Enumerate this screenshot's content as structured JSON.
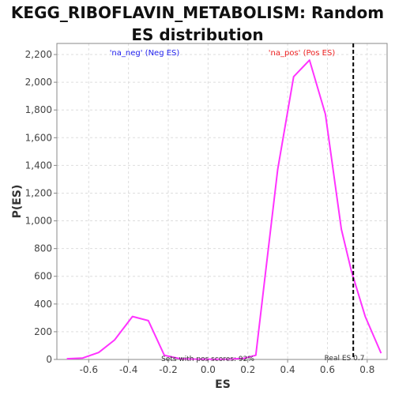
{
  "chart_data": {
    "type": "line",
    "title": "KEGG_RIBOFLAVIN_METABOLISM: Random ES distribution",
    "xlabel": "ES",
    "ylabel": "P(ES)",
    "xlim": [
      -0.76,
      0.9
    ],
    "ylim": [
      0,
      2280
    ],
    "x_ticks": [
      "-0.6",
      "-0.4",
      "-0.2",
      "0.0",
      "0.2",
      "0.4",
      "0.6",
      "0.8"
    ],
    "x_tick_values": [
      -0.6,
      -0.4,
      -0.2,
      0.0,
      0.2,
      0.4,
      0.6,
      0.8
    ],
    "y_ticks": [
      "0",
      "200",
      "400",
      "600",
      "800",
      "1,000",
      "1,200",
      "1,400",
      "1,600",
      "1,800",
      "2,000",
      "2,200"
    ],
    "y_tick_values": [
      0,
      200,
      400,
      600,
      800,
      1000,
      1200,
      1400,
      1600,
      1800,
      2000,
      2200
    ],
    "grid": true,
    "series": [
      {
        "color": "#ff33ff",
        "x": [
          -0.71,
          -0.63,
          -0.55,
          -0.47,
          -0.38,
          -0.3,
          -0.22,
          -0.14,
          -0.06,
          0.02,
          0.1,
          0.18,
          0.24,
          0.28,
          0.35,
          0.43,
          0.51,
          0.59,
          0.67,
          0.72,
          0.79,
          0.87
        ],
        "y": [
          5,
          10,
          50,
          140,
          310,
          280,
          30,
          5,
          2,
          1,
          2,
          8,
          30,
          520,
          1370,
          2040,
          2160,
          1770,
          940,
          640,
          310,
          45
        ]
      }
    ],
    "annotations": {
      "neg_label": "'na_neg' (Neg ES)",
      "pos_label": "'na_pos' (Pos ES)",
      "sets_text": "Sets with pos scores: 92%",
      "real_es_text": "Real ES 0.7",
      "real_es_value": 0.73
    },
    "colors": {
      "neg_label": "#2222ee",
      "pos_label": "#ee2222",
      "grid": "#dddddd",
      "axis": "#888888",
      "marker": "#000000"
    }
  }
}
